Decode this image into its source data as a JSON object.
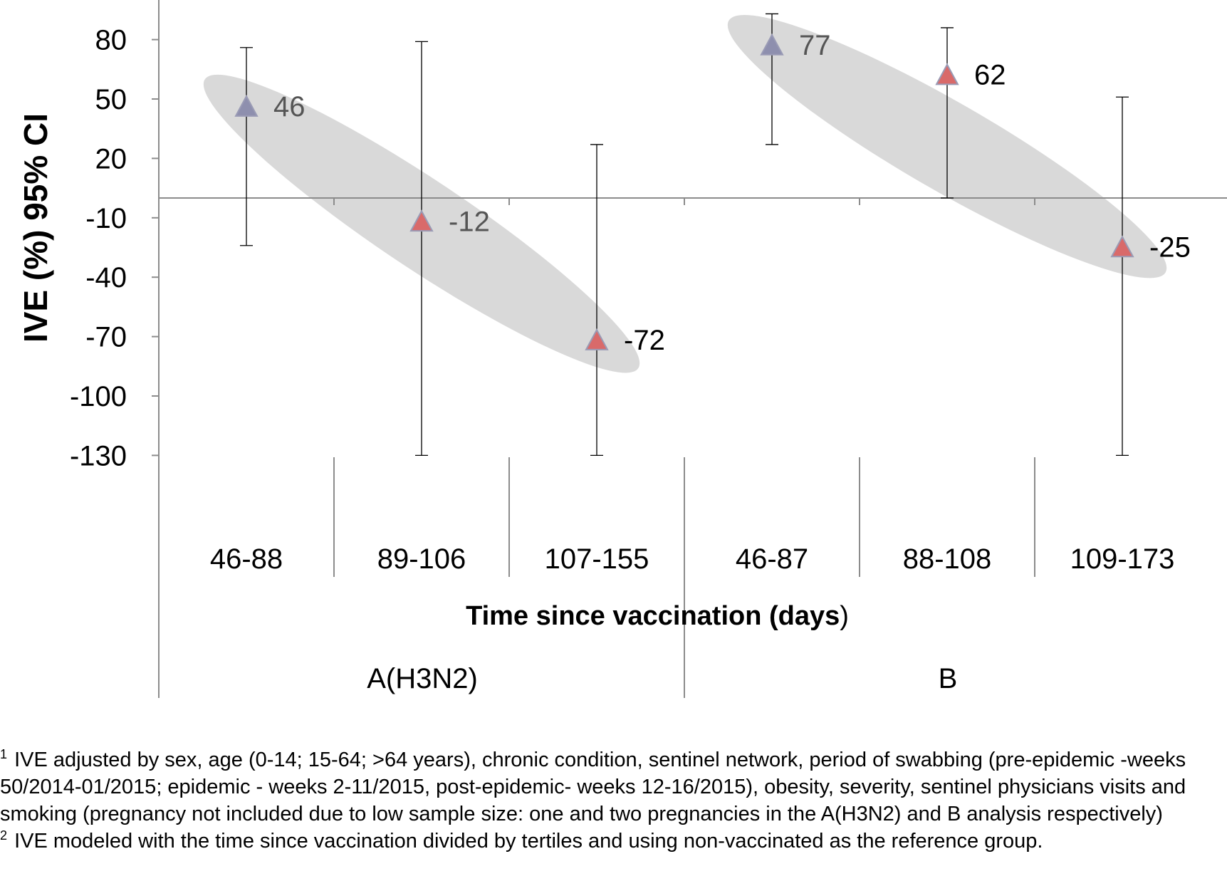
{
  "chart_data": {
    "type": "scatter",
    "ylabel": "IVE (%) 95% CI",
    "xlabel": "Time since vaccination (days",
    "xlabel_suffix": ")",
    "yticks": [
      "80",
      "50",
      "20",
      "-10",
      "-40",
      "-70",
      "-100",
      "-130"
    ],
    "ytick_values": [
      80,
      50,
      20,
      -10,
      -40,
      -70,
      -100,
      -130
    ],
    "ylim": [
      -130,
      90
    ],
    "grid": false,
    "legend": "none",
    "groups": [
      "A(H3N2)",
      "B"
    ],
    "categories": [
      "46-88",
      "89-106",
      "107-155",
      "46-87",
      "88-108",
      "109-173"
    ],
    "points": [
      {
        "group": "A(H3N2)",
        "category": "46-88",
        "ive": 46,
        "ci_low": -24,
        "ci_high": 76,
        "label": "46",
        "color": "#8e8fae",
        "label_color": "#555555"
      },
      {
        "group": "A(H3N2)",
        "category": "89-106",
        "ive": -12,
        "ci_low": -130,
        "ci_high": 79,
        "label": "-12",
        "color": "#d96a6a",
        "label_color": "#555555"
      },
      {
        "group": "A(H3N2)",
        "category": "107-155",
        "ive": -72,
        "ci_low": -130,
        "ci_high": 27,
        "label": "-72",
        "color": "#d96a6a",
        "label_color": "#000000"
      },
      {
        "group": "B",
        "category": "46-87",
        "ive": 77,
        "ci_low": 27,
        "ci_high": 93,
        "label": "77",
        "color": "#8e8fae",
        "label_color": "#555555"
      },
      {
        "group": "B",
        "category": "88-108",
        "ive": 62,
        "ci_low": 0,
        "ci_high": 86,
        "label": "62",
        "color": "#d96a6a",
        "label_color": "#000000"
      },
      {
        "group": "B",
        "category": "109-173",
        "ive": -25,
        "ci_low": -130,
        "ci_high": 51,
        "label": "-25",
        "color": "#d96a6a",
        "label_color": "#000000"
      }
    ],
    "colors": {
      "ellipse": "#d9d9d9",
      "axis": "#8c8c8c",
      "errorbar": "#000000",
      "marker_outline": "#9a9bb5"
    }
  },
  "footnotes": [
    {
      "mark": "1",
      "text": "IVE adjusted by sex, age (0-14; 15-64; >64 years), chronic condition, sentinel network, period of swabbing (pre-epidemic -weeks 50/2014-01/2015; epidemic - weeks 2-11/2015, post-epidemic- weeks 12-16/2015), obesity, severity, sentinel physicians visits and smoking (pregnancy not included due to low sample size: one and two pregnancies in the A(H3N2) and B analysis respectively)"
    },
    {
      "mark": "2",
      "text": "IVE modeled with the time since vaccination divided by tertiles and using non-vaccinated as the reference group."
    }
  ]
}
